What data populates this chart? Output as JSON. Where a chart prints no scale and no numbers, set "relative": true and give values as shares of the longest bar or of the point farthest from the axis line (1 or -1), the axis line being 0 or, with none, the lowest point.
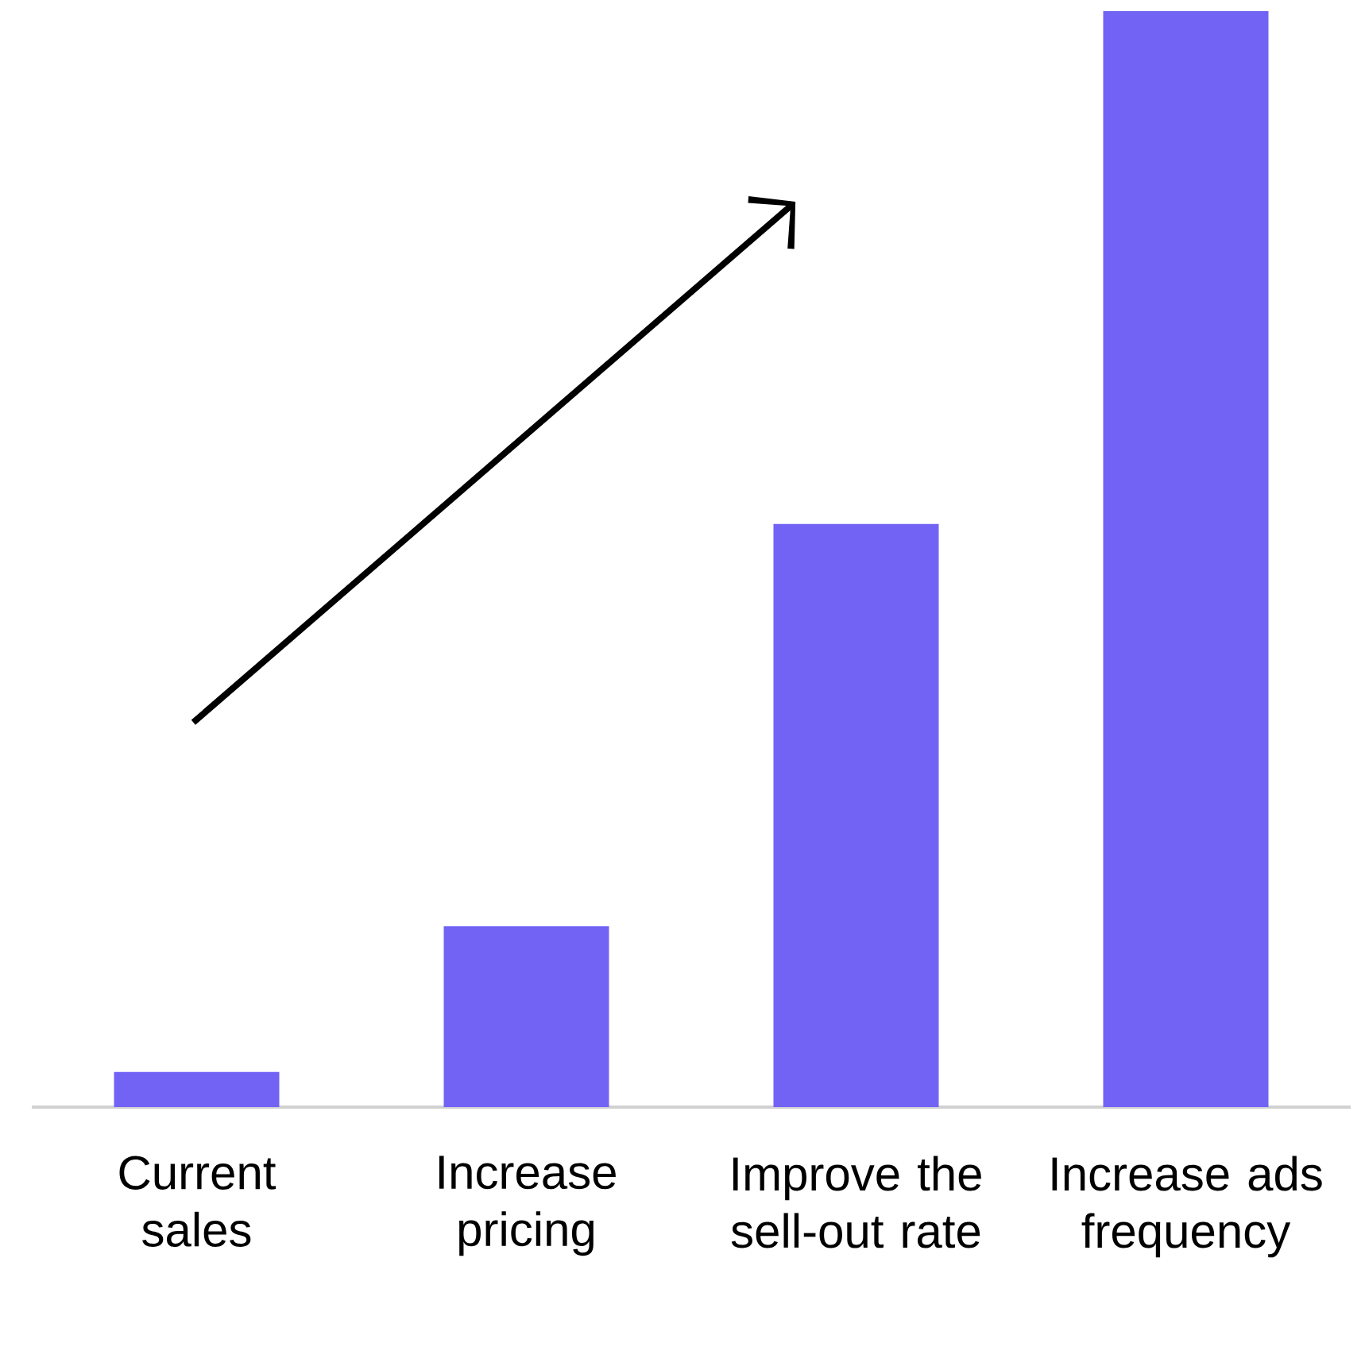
{
  "chart_data": {
    "type": "bar",
    "relative": true,
    "categories": [
      "Current sales",
      "Increase pricing",
      "Improve the sell-out rate",
      "Increase ads frequency"
    ],
    "values": [
      0.032,
      0.165,
      0.532,
      1
    ],
    "color": "#7263f5"
  }
}
